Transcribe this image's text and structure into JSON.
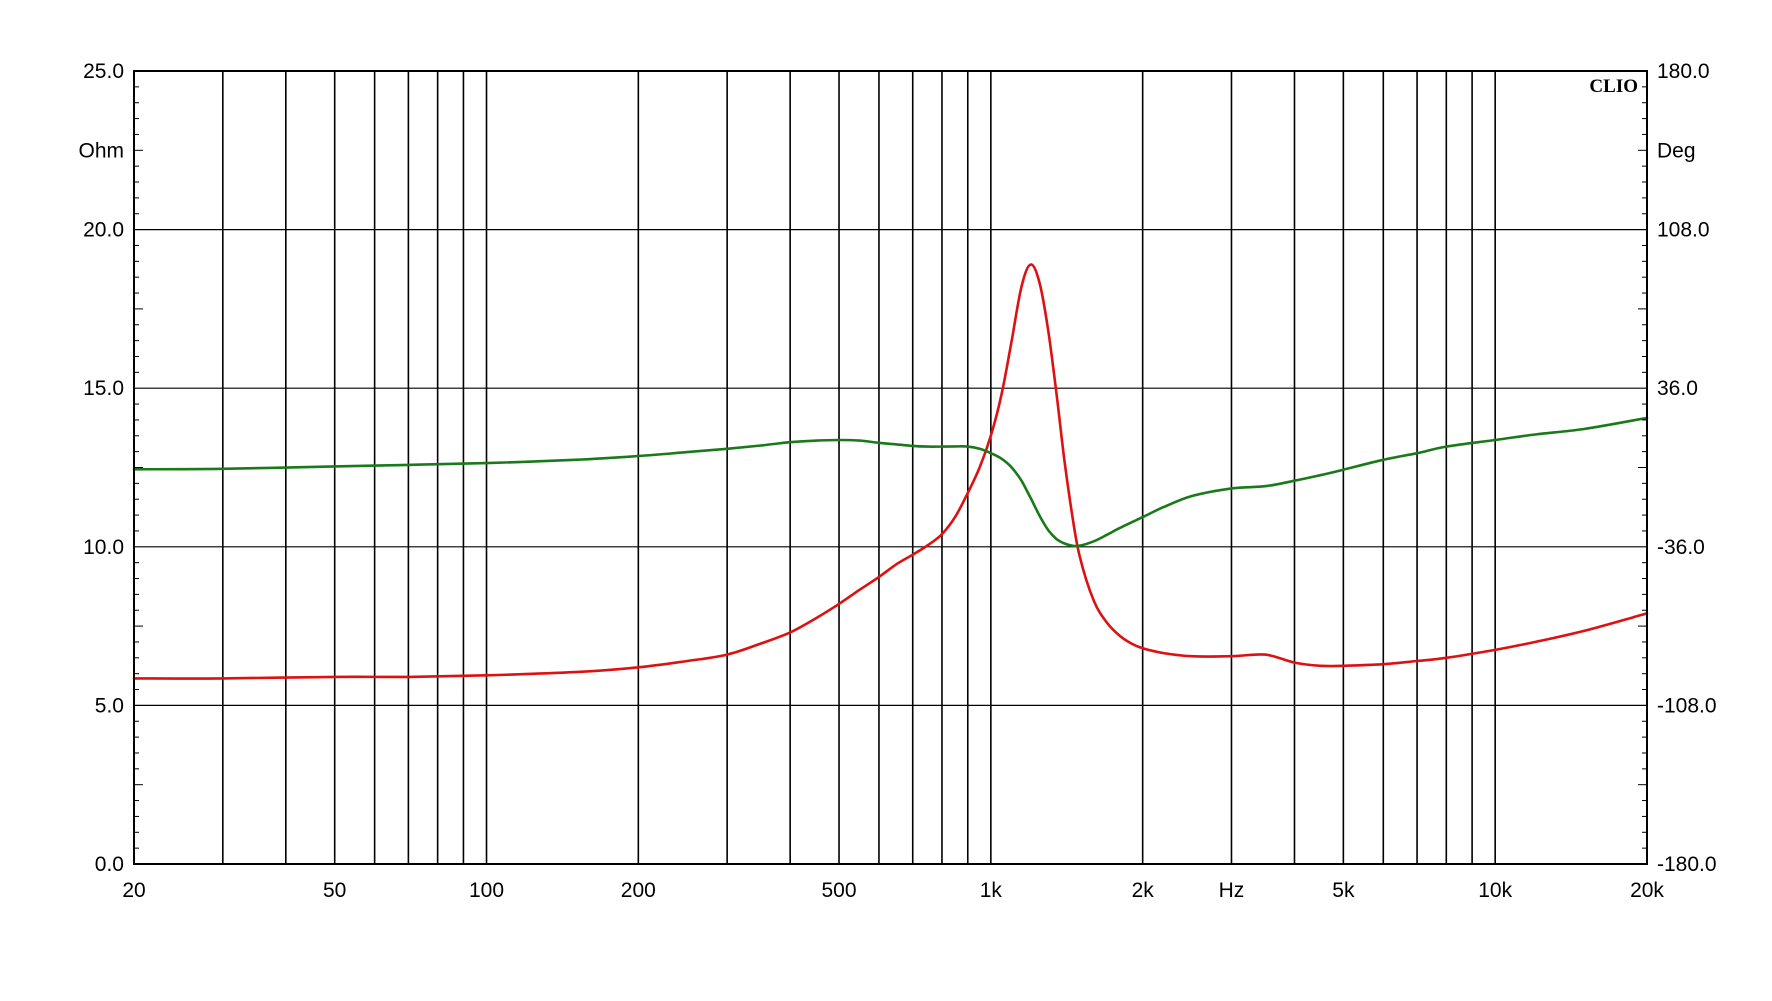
{
  "chart_data": {
    "type": "line",
    "brand_label": "CLIO",
    "x_scale": "log",
    "xlim": [
      20,
      20000
    ],
    "xlabel": "Hz",
    "x_grid": [
      20,
      30,
      40,
      50,
      60,
      70,
      80,
      90,
      100,
      200,
      300,
      400,
      500,
      600,
      700,
      800,
      900,
      1000,
      2000,
      3000,
      4000,
      5000,
      6000,
      7000,
      8000,
      9000,
      10000,
      20000
    ],
    "x_tick_labels": [
      {
        "value": 20,
        "label": "20"
      },
      {
        "value": 50,
        "label": "50"
      },
      {
        "value": 100,
        "label": "100"
      },
      {
        "value": 200,
        "label": "200"
      },
      {
        "value": 500,
        "label": "500"
      },
      {
        "value": 1000,
        "label": "1k"
      },
      {
        "value": 2000,
        "label": "2k"
      },
      {
        "value": 5000,
        "label": "5k"
      },
      {
        "value": 10000,
        "label": "10k"
      },
      {
        "value": 20000,
        "label": "20k"
      }
    ],
    "y_left": {
      "label": "Ohm",
      "ylim": [
        0,
        25
      ],
      "ticks": [
        "0.0",
        "5.0",
        "10.0",
        "15.0",
        "20.0",
        "25.0"
      ]
    },
    "y_right": {
      "label": "Deg",
      "ylim": [
        -180,
        180
      ],
      "ticks": [
        "-180.0",
        "-108.0",
        "-36.0",
        "36.0",
        "108.0",
        "180.0"
      ]
    },
    "grid": true,
    "legend": "none",
    "series": [
      {
        "axis": "left",
        "color": "#dd1111",
        "x": [
          20,
          30,
          50,
          70,
          100,
          150,
          200,
          250,
          300,
          350,
          400,
          450,
          500,
          550,
          600,
          650,
          700,
          750,
          800,
          850,
          900,
          950,
          1000,
          1050,
          1100,
          1150,
          1200,
          1250,
          1300,
          1350,
          1400,
          1450,
          1500,
          1600,
          1700,
          1800,
          1900,
          2000,
          2200,
          2500,
          3000,
          3500,
          4000,
          4500,
          5000,
          6000,
          7000,
          8000,
          10000,
          12000,
          15000,
          20000
        ],
        "y": [
          5.85,
          5.85,
          5.9,
          5.9,
          5.95,
          6.05,
          6.2,
          6.4,
          6.6,
          6.95,
          7.3,
          7.75,
          8.2,
          8.65,
          9.05,
          9.45,
          9.75,
          10.05,
          10.4,
          10.95,
          11.7,
          12.5,
          13.5,
          14.8,
          16.5,
          18.2,
          18.9,
          18.3,
          16.8,
          14.8,
          12.7,
          11.0,
          9.7,
          8.3,
          7.6,
          7.2,
          6.95,
          6.8,
          6.65,
          6.55,
          6.55,
          6.6,
          6.35,
          6.25,
          6.25,
          6.3,
          6.4,
          6.5,
          6.75,
          7.0,
          7.35,
          7.9
        ]
      },
      {
        "axis": "right",
        "color": "#1a7a1a",
        "x": [
          20,
          30,
          50,
          70,
          100,
          150,
          200,
          250,
          300,
          350,
          400,
          450,
          500,
          550,
          600,
          650,
          700,
          750,
          800,
          850,
          900,
          950,
          1000,
          1050,
          1100,
          1150,
          1200,
          1250,
          1300,
          1350,
          1400,
          1450,
          1500,
          1600,
          1700,
          1800,
          2000,
          2200,
          2500,
          3000,
          3500,
          4000,
          4500,
          5000,
          6000,
          7000,
          8000,
          10000,
          12000,
          15000,
          20000
        ],
        "y": [
          -0.8,
          -0.6,
          0.5,
          1.2,
          2.0,
          3.5,
          5.2,
          7.0,
          8.5,
          10.0,
          11.5,
          12.2,
          12.5,
          12.2,
          11.2,
          10.5,
          9.8,
          9.5,
          9.5,
          9.6,
          9.5,
          8.5,
          6.5,
          4.0,
          0.0,
          -6.0,
          -14.0,
          -22.0,
          -28.5,
          -32.5,
          -34.5,
          -35.5,
          -35.5,
          -33.5,
          -30.5,
          -27.5,
          -22.5,
          -18.0,
          -13.0,
          -9.5,
          -8.5,
          -6.0,
          -3.5,
          -1.0,
          3.5,
          6.5,
          9.5,
          12.5,
          15.0,
          17.5,
          22.5
        ]
      }
    ]
  }
}
